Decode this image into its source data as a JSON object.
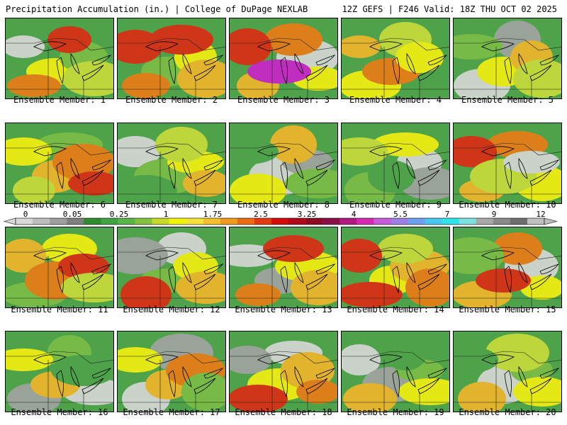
{
  "header": {
    "left": "Precipitation Accumulation (in.) | College of DuPage NEXLAB",
    "right": "12Z GEFS | F246 Valid: 18Z THU OCT 02 2025"
  },
  "colorbar": {
    "tick_labels": [
      "0",
      "0.05",
      "0.25",
      "1",
      "1.75",
      "2.5",
      "3.25",
      "4",
      "5.5",
      "7",
      "9",
      "12"
    ],
    "colors": [
      "#d9d9d9",
      "#bdbdbd",
      "#9e9e9e",
      "#7f7f7f",
      "#2e8b2e",
      "#3fa33f",
      "#58b548",
      "#86c23e",
      "#c7da2a",
      "#f2f20a",
      "#f5e33a",
      "#f5c02e",
      "#f09a1e",
      "#ec6c14",
      "#e33a10",
      "#d40c0c",
      "#b0071a",
      "#8c0a24",
      "#8a1048",
      "#b01a80",
      "#d52bb4",
      "#c75cd8",
      "#9f7fe6",
      "#6f9ff0",
      "#48c7f0",
      "#2ee4e8",
      "#7fe0e0",
      "#a8a8a8",
      "#8a8a8a",
      "#6e6e6e",
      "#bfbfbf"
    ]
  },
  "map_palette": {
    "gray_light": "#d8d8d8",
    "gray": "#a3a3a3",
    "green_dark": "#2f8a2f",
    "green": "#4ea34a",
    "green_light": "#7cbd45",
    "yellow_green": "#c9dc3a",
    "yellow": "#f5f010",
    "orange": "#f3b52a",
    "orange_dark": "#ec7c16",
    "red": "#dd2a12",
    "magenta": "#cc22cc"
  },
  "members": [
    {
      "label": "Ensemble Member: 1",
      "blobs": [
        "gray_light",
        "yellow",
        "green_light",
        "yellow_green",
        "orange_dark",
        "red"
      ]
    },
    {
      "label": "Ensemble Member: 2",
      "blobs": [
        "green_light",
        "yellow",
        "orange",
        "orange_dark",
        "red",
        "red"
      ]
    },
    {
      "label": "Ensemble Member: 3",
      "blobs": [
        "gray_light",
        "yellow",
        "orange",
        "orange_dark",
        "red",
        "magenta"
      ]
    },
    {
      "label": "Ensemble Member: 4",
      "blobs": [
        "green",
        "yellow",
        "yellow_green",
        "orange",
        "orange_dark",
        "yellow"
      ]
    },
    {
      "label": "Ensemble Member: 5",
      "blobs": [
        "gray_light",
        "gray",
        "green_light",
        "yellow",
        "orange",
        "yellow_green"
      ]
    },
    {
      "label": "Ensemble Member: 6",
      "blobs": [
        "green_light",
        "yellow",
        "orange",
        "orange_dark",
        "red",
        "yellow_green"
      ]
    },
    {
      "label": "Ensemble Member: 7",
      "blobs": [
        "gray_light",
        "green_light",
        "yellow",
        "orange",
        "green",
        "yellow_green"
      ]
    },
    {
      "label": "Ensemble Member: 8",
      "blobs": [
        "gray_light",
        "gray",
        "green_light",
        "yellow",
        "orange",
        "green"
      ]
    },
    {
      "label": "Ensemble Member: 9",
      "blobs": [
        "gray_light",
        "gray",
        "green_light",
        "yellow",
        "yellow_green",
        "green"
      ]
    },
    {
      "label": "Ensemble Member: 10",
      "blobs": [
        "yellow",
        "orange",
        "orange_dark",
        "red",
        "yellow_green",
        "gray_light"
      ]
    },
    {
      "label": "Ensemble Member: 11",
      "blobs": [
        "green_light",
        "yellow",
        "orange",
        "orange_dark",
        "red",
        "yellow_green"
      ]
    },
    {
      "label": "Ensemble Member: 12",
      "blobs": [
        "gray_light",
        "gray",
        "green_light",
        "yellow",
        "orange",
        "red"
      ]
    },
    {
      "label": "Ensemble Member: 13",
      "blobs": [
        "gray_light",
        "gray",
        "yellow",
        "orange",
        "orange_dark",
        "red"
      ]
    },
    {
      "label": "Ensemble Member: 14",
      "blobs": [
        "yellow",
        "orange",
        "orange_dark",
        "red",
        "yellow_green",
        "red"
      ]
    },
    {
      "label": "Ensemble Member: 15",
      "blobs": [
        "gray_light",
        "yellow",
        "orange",
        "orange_dark",
        "green_light",
        "red"
      ]
    },
    {
      "label": "Ensemble Member: 16",
      "blobs": [
        "gray_light",
        "gray",
        "green_light",
        "yellow",
        "orange",
        "green"
      ]
    },
    {
      "label": "Ensemble Member: 17",
      "blobs": [
        "gray_light",
        "gray",
        "yellow",
        "orange",
        "orange_dark",
        "green_light"
      ]
    },
    {
      "label": "Ensemble Member: 18",
      "blobs": [
        "gray_light",
        "gray",
        "yellow",
        "orange",
        "orange_dark",
        "red"
      ]
    },
    {
      "label": "Ensemble Member: 19",
      "blobs": [
        "gray_light",
        "gray",
        "green_light",
        "yellow",
        "orange",
        "green"
      ]
    },
    {
      "label": "Ensemble Member: 20",
      "blobs": [
        "gray_light",
        "green_light",
        "yellow",
        "orange",
        "yellow_green",
        "green"
      ]
    }
  ]
}
